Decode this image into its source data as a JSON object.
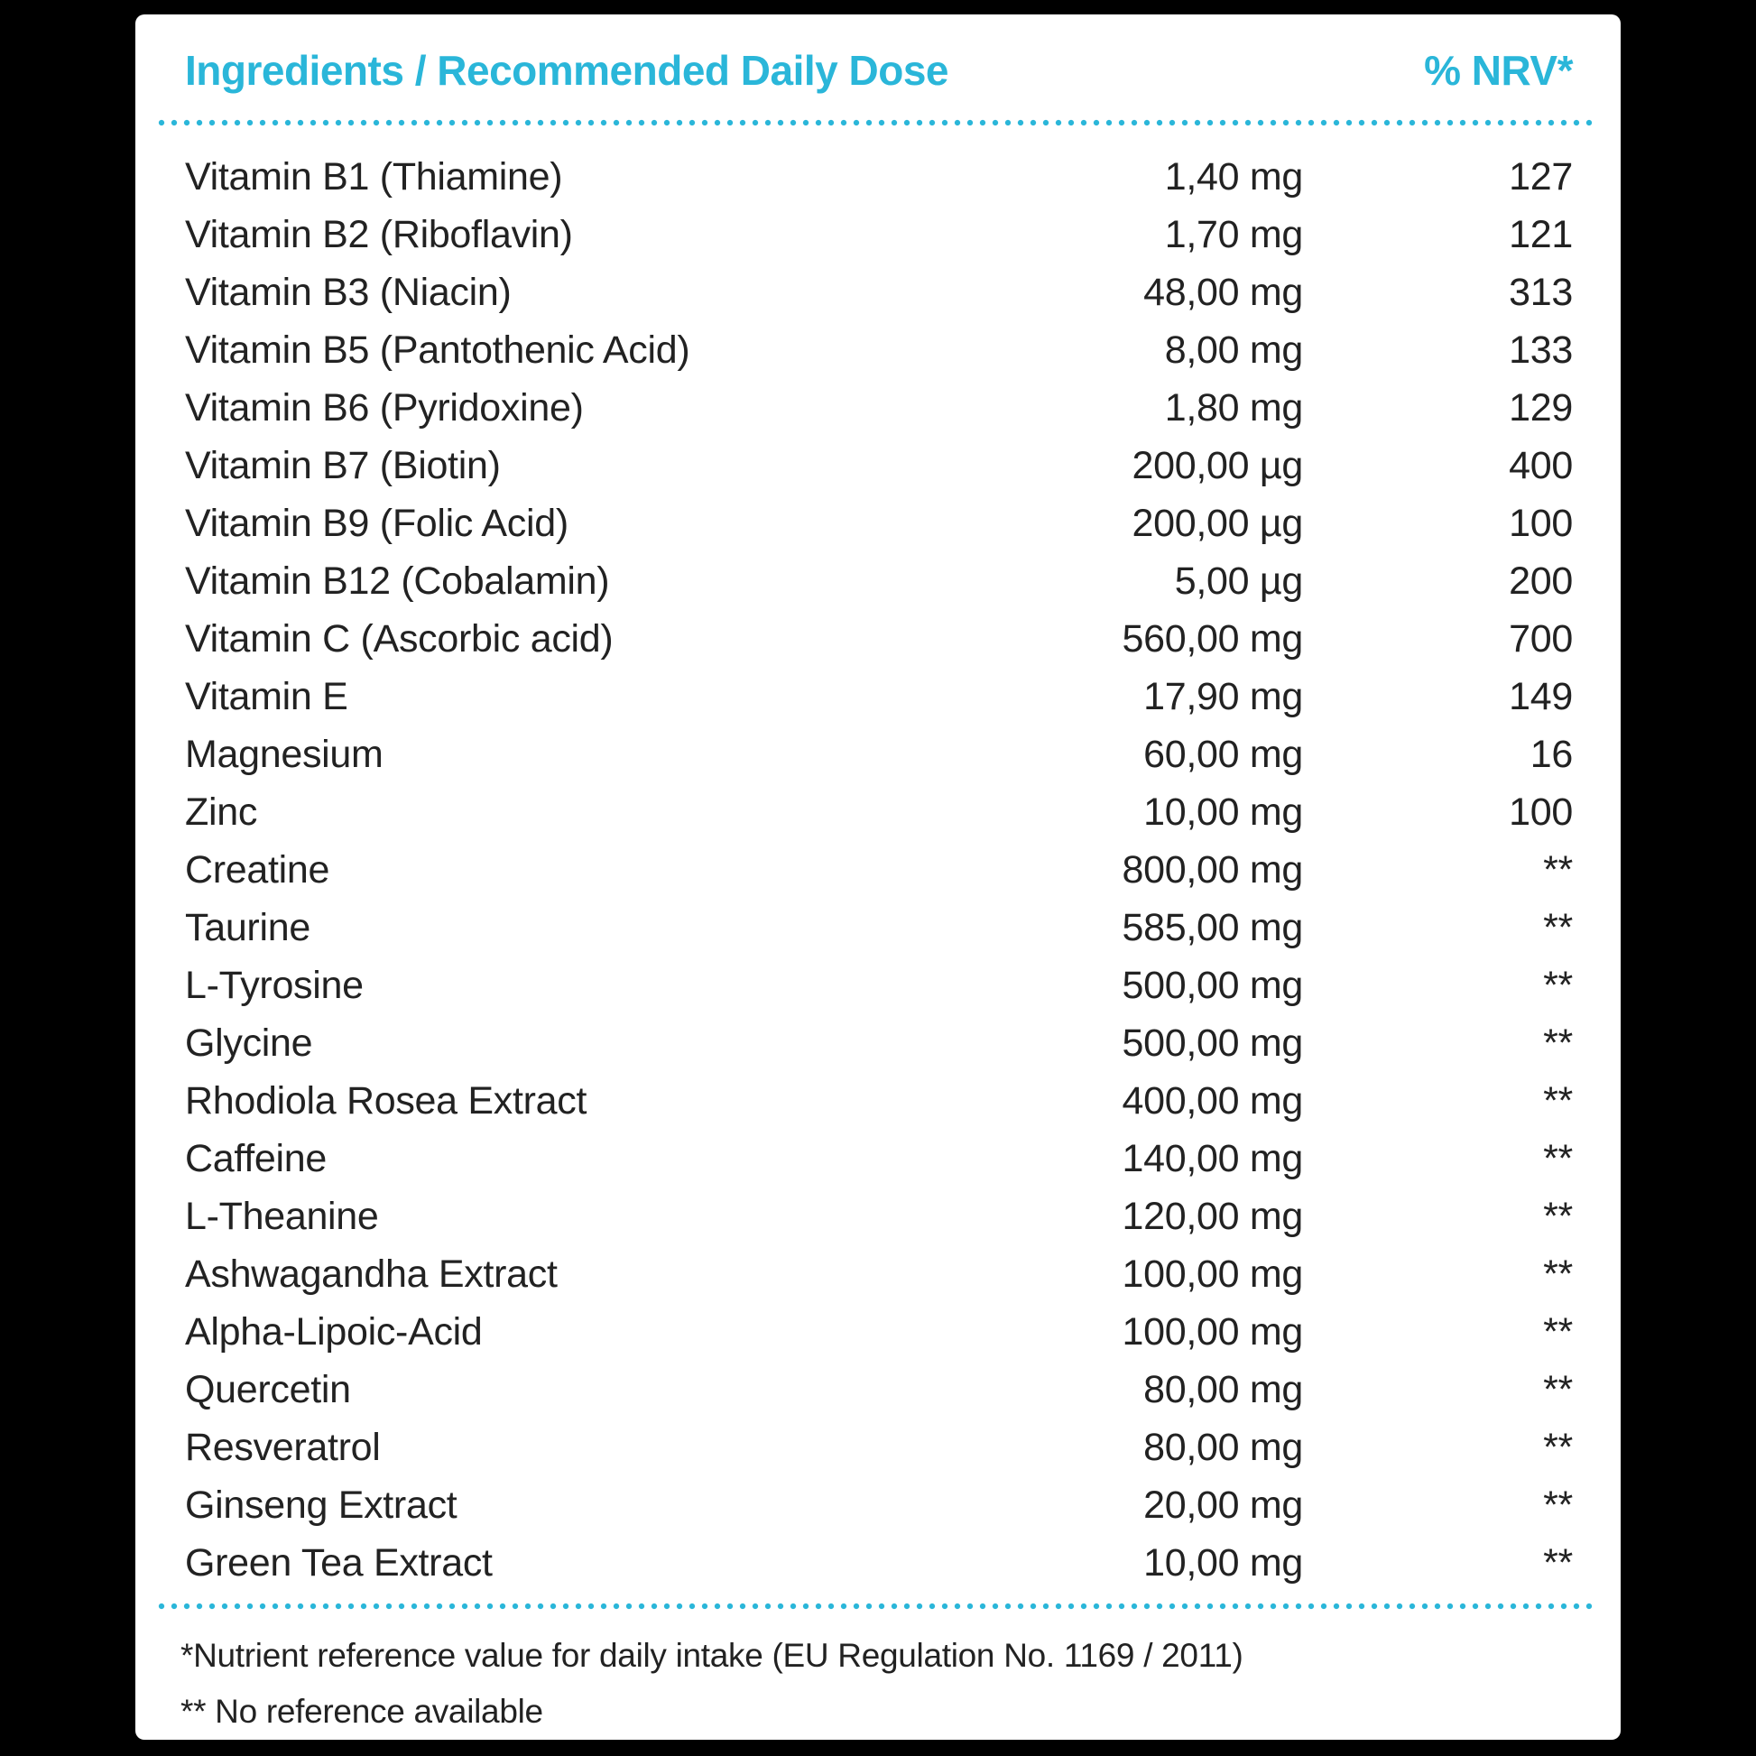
{
  "colors": {
    "accent": "#2ab6d9",
    "text": "#222222",
    "card_background": "#ffffff",
    "page_background": "#000000"
  },
  "table": {
    "header": {
      "ingredients_label": "Ingredients / Recommended Daily Dose",
      "nrv_label": "% NRV*"
    },
    "rows": [
      {
        "name": "Vitamin B1 (Thiamine)",
        "amount": "1,40 mg",
        "nrv": "127"
      },
      {
        "name": "Vitamin B2 (Riboflavin)",
        "amount": "1,70 mg",
        "nrv": "121"
      },
      {
        "name": "Vitamin B3 (Niacin)",
        "amount": "48,00 mg",
        "nrv": "313"
      },
      {
        "name": "Vitamin B5 (Pantothenic Acid)",
        "amount": "8,00 mg",
        "nrv": "133"
      },
      {
        "name": "Vitamin B6 (Pyridoxine)",
        "amount": "1,80 mg",
        "nrv": "129"
      },
      {
        "name": "Vitamin B7 (Biotin)",
        "amount": "200,00 µg",
        "nrv": "400"
      },
      {
        "name": "Vitamin B9 (Folic Acid)",
        "amount": "200,00 µg",
        "nrv": "100"
      },
      {
        "name": "Vitamin B12 (Cobalamin)",
        "amount": "5,00 µg",
        "nrv": "200"
      },
      {
        "name": "Vitamin C (Ascorbic acid)",
        "amount": "560,00 mg",
        "nrv": "700"
      },
      {
        "name": "Vitamin E",
        "amount": "17,90 mg",
        "nrv": "149"
      },
      {
        "name": "Magnesium",
        "amount": "60,00 mg",
        "nrv": "16"
      },
      {
        "name": "Zinc",
        "amount": "10,00 mg",
        "nrv": "100"
      },
      {
        "name": "Creatine",
        "amount": "800,00 mg",
        "nrv": "**"
      },
      {
        "name": "Taurine",
        "amount": "585,00 mg",
        "nrv": "**"
      },
      {
        "name": "L-Tyrosine",
        "amount": "500,00 mg",
        "nrv": "**"
      },
      {
        "name": "Glycine",
        "amount": "500,00 mg",
        "nrv": "**"
      },
      {
        "name": "Rhodiola Rosea Extract",
        "amount": "400,00 mg",
        "nrv": "**"
      },
      {
        "name": "Caffeine",
        "amount": "140,00 mg",
        "nrv": "**"
      },
      {
        "name": "L-Theanine",
        "amount": "120,00 mg",
        "nrv": "**"
      },
      {
        "name": "Ashwagandha Extract",
        "amount": "100,00 mg",
        "nrv": "**"
      },
      {
        "name": "Alpha-Lipoic-Acid",
        "amount": "100,00 mg",
        "nrv": "**"
      },
      {
        "name": "Quercetin",
        "amount": "80,00 mg",
        "nrv": "**"
      },
      {
        "name": "Resveratrol",
        "amount": "80,00 mg",
        "nrv": "**"
      },
      {
        "name": "Ginseng Extract",
        "amount": "20,00 mg",
        "nrv": "**"
      },
      {
        "name": "Green Tea Extract",
        "amount": "10,00 mg",
        "nrv": "**"
      }
    ],
    "footnotes": [
      "*Nutrient reference value for daily intake (EU Regulation No. 1169 / 2011)",
      "** No reference available"
    ]
  }
}
